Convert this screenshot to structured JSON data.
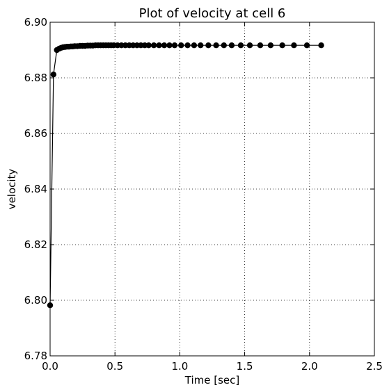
{
  "chart_data": {
    "type": "line",
    "title": "Plot of velocity at cell 6",
    "xlabel": "Time [sec]",
    "ylabel": "velocity",
    "xlim": [
      0.0,
      2.5
    ],
    "ylim": [
      6.78,
      6.9
    ],
    "xticks": [
      "0.0",
      "0.5",
      "1.0",
      "1.5",
      "2.0",
      "2.5"
    ],
    "yticks": [
      "6.78",
      "6.80",
      "6.82",
      "6.84",
      "6.86",
      "6.88",
      "6.90"
    ],
    "grid": true,
    "marker": "circle",
    "color": "#000000",
    "series": [
      {
        "x": [
          0.0,
          0.026,
          0.052,
          0.07,
          0.085,
          0.1,
          0.115,
          0.13,
          0.145,
          0.16,
          0.175,
          0.19,
          0.21,
          0.23,
          0.25,
          0.27,
          0.29,
          0.31,
          0.33,
          0.35,
          0.37,
          0.39,
          0.41,
          0.43,
          0.45,
          0.47,
          0.49,
          0.52,
          0.55,
          0.58,
          0.61,
          0.64,
          0.67,
          0.7,
          0.73,
          0.76,
          0.8,
          0.84,
          0.88,
          0.92,
          0.96,
          1.01,
          1.06,
          1.11,
          1.16,
          1.22,
          1.28,
          1.34,
          1.4,
          1.47,
          1.54,
          1.62,
          1.7,
          1.79,
          1.88,
          1.98,
          2.09
        ],
        "y": [
          6.7982,
          6.8812,
          6.89,
          6.8905,
          6.8908,
          6.891,
          6.8911,
          6.8912,
          6.8912,
          6.8913,
          6.8913,
          6.8914,
          6.8914,
          6.8915,
          6.8915,
          6.8915,
          6.8916,
          6.8916,
          6.8916,
          6.8917,
          6.8917,
          6.8917,
          6.8917,
          6.8917,
          6.8917,
          6.8917,
          6.8917,
          6.8917,
          6.8917,
          6.8917,
          6.8917,
          6.8917,
          6.8917,
          6.8917,
          6.8917,
          6.8917,
          6.8917,
          6.8917,
          6.8917,
          6.8917,
          6.8917,
          6.8917,
          6.8917,
          6.8917,
          6.8917,
          6.8917,
          6.8917,
          6.8917,
          6.8917,
          6.8917,
          6.8917,
          6.8917,
          6.8917,
          6.8917,
          6.8917,
          6.8917,
          6.8917
        ]
      }
    ]
  }
}
